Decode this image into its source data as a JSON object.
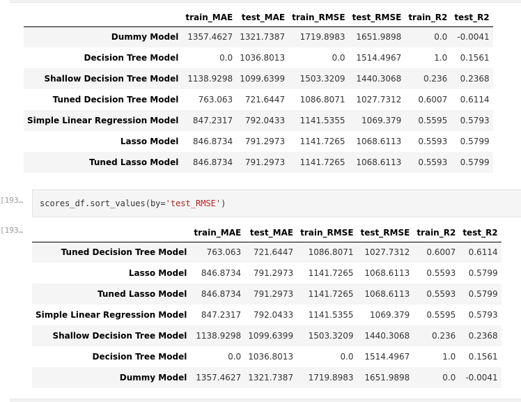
{
  "columns": [
    "train_MAE",
    "test_MAE",
    "train_RMSE",
    "test_RMSE",
    "train_R2",
    "test_R2"
  ],
  "table1": {
    "rows": [
      {
        "name": "Dummy Model",
        "values": [
          "1357.4627",
          "1321.7387",
          "1719.8983",
          "1651.9898",
          "0.0",
          "-0.0041"
        ]
      },
      {
        "name": "Decision Tree Model",
        "values": [
          "0.0",
          "1036.8013",
          "0.0",
          "1514.4967",
          "1.0",
          "0.1561"
        ]
      },
      {
        "name": "Shallow Decision Tree Model",
        "values": [
          "1138.9298",
          "1099.6399",
          "1503.3209",
          "1440.3068",
          "0.236",
          "0.2368"
        ]
      },
      {
        "name": "Tuned Decision Tree Model",
        "values": [
          "763.063",
          "721.6447",
          "1086.8071",
          "1027.7312",
          "0.6007",
          "0.6114"
        ]
      },
      {
        "name": "Simple Linear Regression Model",
        "values": [
          "847.2317",
          "792.0433",
          "1141.5355",
          "1069.379",
          "0.5595",
          "0.5793"
        ]
      },
      {
        "name": "Lasso Model",
        "values": [
          "846.8734",
          "791.2973",
          "1141.7265",
          "1068.6113",
          "0.5593",
          "0.5799"
        ]
      },
      {
        "name": "Tuned Lasso Model",
        "values": [
          "846.8734",
          "791.2973",
          "1141.7265",
          "1068.6113",
          "0.5593",
          "0.5799"
        ]
      }
    ]
  },
  "cell": {
    "in_prompt": "[193…",
    "out_prompt": "[193…",
    "code_prefix": "scores_df.sort_values(by=",
    "code_string": "'test_RMSE'",
    "code_suffix": ")"
  },
  "table2": {
    "rows": [
      {
        "name": "Tuned Decision Tree Model",
        "values": [
          "763.063",
          "721.6447",
          "1086.8071",
          "1027.7312",
          "0.6007",
          "0.6114"
        ]
      },
      {
        "name": "Lasso Model",
        "values": [
          "846.8734",
          "791.2973",
          "1141.7265",
          "1068.6113",
          "0.5593",
          "0.5799"
        ]
      },
      {
        "name": "Tuned Lasso Model",
        "values": [
          "846.8734",
          "791.2973",
          "1141.7265",
          "1068.6113",
          "0.5593",
          "0.5799"
        ]
      },
      {
        "name": "Simple Linear Regression Model",
        "values": [
          "847.2317",
          "792.0433",
          "1141.5355",
          "1069.379",
          "0.5595",
          "0.5793"
        ]
      },
      {
        "name": "Shallow Decision Tree Model",
        "values": [
          "1138.9298",
          "1099.6399",
          "1503.3209",
          "1440.3068",
          "0.236",
          "0.2368"
        ]
      },
      {
        "name": "Decision Tree Model",
        "values": [
          "0.0",
          "1036.8013",
          "0.0",
          "1514.4967",
          "1.0",
          "0.1561"
        ]
      },
      {
        "name": "Dummy Model",
        "values": [
          "1357.4627",
          "1321.7387",
          "1719.8983",
          "1651.9898",
          "0.0",
          "-0.0041"
        ]
      }
    ]
  }
}
